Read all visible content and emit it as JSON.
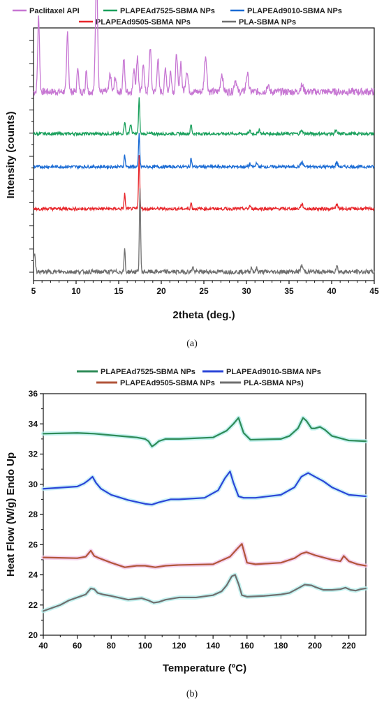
{
  "chart_data": [
    {
      "type": "line",
      "panel_label": "(a)",
      "xlabel": "2theta (deg.)",
      "ylabel": "Intensity (counts)",
      "xlim": [
        5,
        45
      ],
      "xticks": [
        5,
        10,
        15,
        20,
        25,
        30,
        35,
        40,
        45
      ],
      "y_tick_labels_shown": false,
      "legend_position": "top",
      "series": [
        {
          "name": "Paclitaxel API",
          "color": "#c777d3",
          "baseline": 0.62,
          "noise": 0.012,
          "peaks": [
            [
              5.6,
              0.25,
              0.15
            ],
            [
              9.0,
              0.2,
              0.15
            ],
            [
              10.2,
              0.09,
              0.12
            ],
            [
              11.2,
              0.08,
              0.12
            ],
            [
              12.4,
              0.4,
              0.18
            ],
            [
              14.0,
              0.06,
              0.15
            ],
            [
              14.6,
              0.05,
              0.15
            ],
            [
              15.6,
              0.11,
              0.15
            ],
            [
              16.8,
              0.08,
              0.15
            ],
            [
              17.2,
              0.12,
              0.15
            ],
            [
              17.9,
              0.1,
              0.14
            ],
            [
              18.7,
              0.15,
              0.16
            ],
            [
              19.6,
              0.11,
              0.15
            ],
            [
              20.5,
              0.08,
              0.15
            ],
            [
              21.1,
              0.07,
              0.15
            ],
            [
              21.8,
              0.13,
              0.15
            ],
            [
              22.3,
              0.1,
              0.15
            ],
            [
              23.0,
              0.07,
              0.2
            ],
            [
              25.2,
              0.12,
              0.2
            ],
            [
              27.1,
              0.06,
              0.2
            ],
            [
              28.7,
              0.04,
              0.2
            ],
            [
              30.1,
              0.06,
              0.2
            ],
            [
              32.5,
              0.02,
              0.2
            ],
            [
              36.5,
              0.02,
              0.25
            ]
          ]
        },
        {
          "name": "PLAPEAd7525-SBMA NPs",
          "color": "#1aa05c",
          "baseline": 0.48,
          "noise": 0.005,
          "peaks": [
            [
              15.7,
              0.04,
              0.12
            ],
            [
              16.4,
              0.03,
              0.15
            ],
            [
              17.4,
              0.12,
              0.1
            ],
            [
              23.5,
              0.03,
              0.12
            ],
            [
              30.4,
              0.01,
              0.12
            ],
            [
              31.5,
              0.015,
              0.12
            ],
            [
              36.5,
              0.01,
              0.2
            ],
            [
              40.5,
              0.01,
              0.15
            ]
          ]
        },
        {
          "name": "PLAPEAd9010-SBMA NPs",
          "color": "#1a6bd4",
          "baseline": 0.37,
          "noise": 0.005,
          "peaks": [
            [
              15.7,
              0.04,
              0.1
            ],
            [
              17.4,
              0.11,
              0.1
            ],
            [
              23.5,
              0.03,
              0.1
            ],
            [
              30.4,
              0.01,
              0.12
            ],
            [
              31.2,
              0.015,
              0.12
            ],
            [
              36.5,
              0.015,
              0.2
            ],
            [
              40.6,
              0.015,
              0.15
            ]
          ]
        },
        {
          "name": "PLAPEAd9505-SBMA NPs",
          "color": "#e8262b",
          "baseline": 0.23,
          "noise": 0.005,
          "peaks": [
            [
              15.7,
              0.05,
              0.1
            ],
            [
              17.4,
              0.18,
              0.1
            ],
            [
              23.5,
              0.02,
              0.1
            ],
            [
              30.4,
              0.01,
              0.12
            ],
            [
              36.5,
              0.015,
              0.2
            ],
            [
              40.6,
              0.015,
              0.15
            ]
          ]
        },
        {
          "name": "PLA-SBMA NPs",
          "color": "#6f6f6f",
          "baseline": 0.02,
          "noise": 0.007,
          "peaks": [
            [
              5.1,
              0.06,
              0.15
            ],
            [
              15.7,
              0.08,
              0.09
            ],
            [
              17.5,
              0.28,
              0.1
            ],
            [
              23.7,
              0.02,
              0.1
            ],
            [
              30.6,
              0.015,
              0.12
            ],
            [
              31.2,
              0.012,
              0.12
            ],
            [
              36.5,
              0.02,
              0.2
            ],
            [
              40.6,
              0.02,
              0.15
            ]
          ]
        }
      ]
    },
    {
      "type": "line",
      "panel_label": "(b)",
      "xlabel": "Temperature (ºC)",
      "ylabel": "Heat Flow (W/g) Endo Up",
      "xlim": [
        40,
        230
      ],
      "ylim": [
        20,
        36
      ],
      "xticks": [
        40,
        60,
        80,
        100,
        120,
        140,
        160,
        180,
        200,
        220
      ],
      "yticks": [
        20,
        22,
        24,
        26,
        28,
        30,
        32,
        34,
        36
      ],
      "legend_position": "top",
      "series": [
        {
          "name": "PLAPEAd7525-SBMA NPs",
          "color": "#2e8b57",
          "halo": "#b9f0ee",
          "x": [
            40,
            60,
            70,
            80,
            90,
            95,
            100,
            102,
            104,
            106,
            108,
            112,
            120,
            140,
            148,
            152,
            155,
            158,
            162,
            180,
            185,
            190,
            193,
            195,
            198,
            200,
            203,
            206,
            210,
            220,
            230
          ],
          "y": [
            33.35,
            33.4,
            33.35,
            33.25,
            33.15,
            33.1,
            33.0,
            32.85,
            32.5,
            32.65,
            32.85,
            33.0,
            33.0,
            33.1,
            33.55,
            34.0,
            34.4,
            33.4,
            32.95,
            33.0,
            33.2,
            33.7,
            34.4,
            34.2,
            33.7,
            33.7,
            33.8,
            33.6,
            33.2,
            32.9,
            32.85
          ]
        },
        {
          "name": "PLAPEAd9010-SBMA NPs",
          "color": "#2b45d8",
          "halo": "#bfeef6",
          "x": [
            40,
            60,
            64,
            67,
            69,
            71,
            74,
            80,
            90,
            100,
            104,
            108,
            115,
            120,
            135,
            143,
            147,
            150,
            152,
            155,
            158,
            165,
            180,
            188,
            192,
            196,
            200,
            205,
            210,
            220,
            230
          ],
          "y": [
            29.7,
            29.85,
            30.05,
            30.3,
            30.5,
            30.1,
            29.7,
            29.3,
            28.95,
            28.7,
            28.65,
            28.8,
            29.0,
            29.0,
            29.1,
            29.6,
            30.4,
            30.85,
            30.1,
            29.2,
            29.1,
            29.1,
            29.3,
            29.8,
            30.5,
            30.75,
            30.5,
            30.2,
            29.8,
            29.3,
            29.2
          ]
        },
        {
          "name": "PLAPEAd9505-SBMA NPs",
          "color": "#b2553a",
          "halo": "#f2c8ea",
          "x": [
            40,
            60,
            65,
            68,
            70,
            73,
            80,
            88,
            95,
            100,
            106,
            112,
            120,
            140,
            150,
            154,
            157,
            160,
            165,
            180,
            188,
            192,
            195,
            200,
            210,
            215,
            217,
            220,
            225,
            230
          ],
          "y": [
            25.15,
            25.1,
            25.2,
            25.6,
            25.25,
            25.1,
            24.8,
            24.5,
            24.6,
            24.6,
            24.5,
            24.6,
            24.65,
            24.7,
            25.2,
            25.7,
            26.05,
            24.8,
            24.7,
            24.8,
            25.1,
            25.4,
            25.5,
            25.3,
            25.0,
            24.9,
            25.25,
            24.9,
            24.7,
            24.6
          ]
        },
        {
          "name": "PLA-SBMA NPs)",
          "color": "#6f6f6f",
          "halo": "#b9f0ee",
          "x": [
            40,
            50,
            55,
            60,
            65,
            68,
            70,
            72,
            75,
            80,
            90,
            98,
            102,
            105,
            108,
            112,
            120,
            130,
            140,
            145,
            148,
            151,
            153,
            155,
            157,
            160,
            170,
            180,
            185,
            190,
            194,
            198,
            200,
            205,
            210,
            215,
            218,
            221,
            224,
            227,
            230
          ],
          "y": [
            21.6,
            22.0,
            22.3,
            22.5,
            22.7,
            23.1,
            23.05,
            22.8,
            22.7,
            22.6,
            22.35,
            22.45,
            22.3,
            22.15,
            22.2,
            22.35,
            22.5,
            22.5,
            22.65,
            22.9,
            23.3,
            23.9,
            24.0,
            23.4,
            22.65,
            22.55,
            22.6,
            22.7,
            22.8,
            23.1,
            23.35,
            23.3,
            23.2,
            23.0,
            23.0,
            23.05,
            23.15,
            23.0,
            22.95,
            23.05,
            23.1
          ]
        }
      ]
    }
  ]
}
